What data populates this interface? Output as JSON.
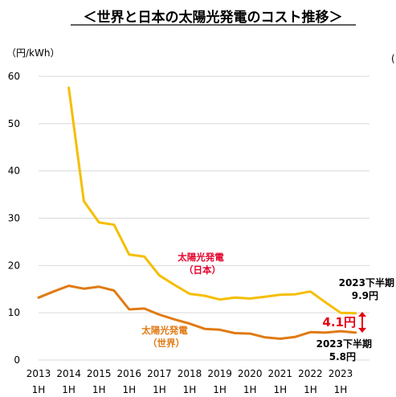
{
  "title": "＜世界と日本の太陽光発電のコスト推移＞",
  "unit_label": "（円/kWh）",
  "right_edge_text": "(",
  "chart_data": {
    "type": "line",
    "ylim": [
      0,
      60
    ],
    "yticks": [
      "0",
      "10",
      "20",
      "30",
      "40",
      "50",
      "60"
    ],
    "ytick_values": [
      0,
      10,
      20,
      30,
      40,
      50,
      60
    ],
    "x_years": [
      "2013",
      "2014",
      "2015",
      "2016",
      "2017",
      "2018",
      "2019",
      "2020",
      "2021",
      "2022",
      "2023"
    ],
    "x_halves": [
      "1H",
      "1H",
      "1H",
      "1H",
      "1H",
      "1H",
      "1H",
      "1H",
      "1H",
      "1H",
      "1H"
    ],
    "x": [
      2013.0,
      2013.5,
      2014.0,
      2014.5,
      2015.0,
      2015.5,
      2016.0,
      2016.5,
      2017.0,
      2017.5,
      2018.0,
      2018.5,
      2019.0,
      2019.5,
      2020.0,
      2020.5,
      2021.0,
      2021.5,
      2022.0,
      2022.5,
      2023.0,
      2023.5
    ],
    "grid": true,
    "series": [
      {
        "name": "太陽光発電\n（日本）",
        "label_line1": "太陽光発電",
        "label_line2": "（日本）",
        "color": "#f5be00",
        "values": [
          null,
          null,
          57.6,
          33.6,
          29.1,
          28.6,
          22.3,
          21.9,
          17.9,
          15.9,
          14.0,
          13.6,
          12.8,
          13.2,
          13.0,
          13.4,
          13.8,
          13.9,
          14.5,
          12.2,
          10.0,
          9.9
        ]
      },
      {
        "name": "太陽光発電\n（世界）",
        "label_line1": "太陽光発電",
        "label_line2": "（世界）",
        "color": "#e07a14",
        "values": [
          13.2,
          14.5,
          15.7,
          15.1,
          15.5,
          14.7,
          10.7,
          10.9,
          9.6,
          8.6,
          7.7,
          6.6,
          6.4,
          5.7,
          5.6,
          4.8,
          4.5,
          4.9,
          5.9,
          5.8,
          6.1,
          5.8
        ]
      }
    ],
    "annotations": {
      "japan_period": "2023下半期",
      "japan_value": "9.9円",
      "world_period": "2023下半期",
      "world_value": "5.8円",
      "gap": "4.1円"
    }
  }
}
